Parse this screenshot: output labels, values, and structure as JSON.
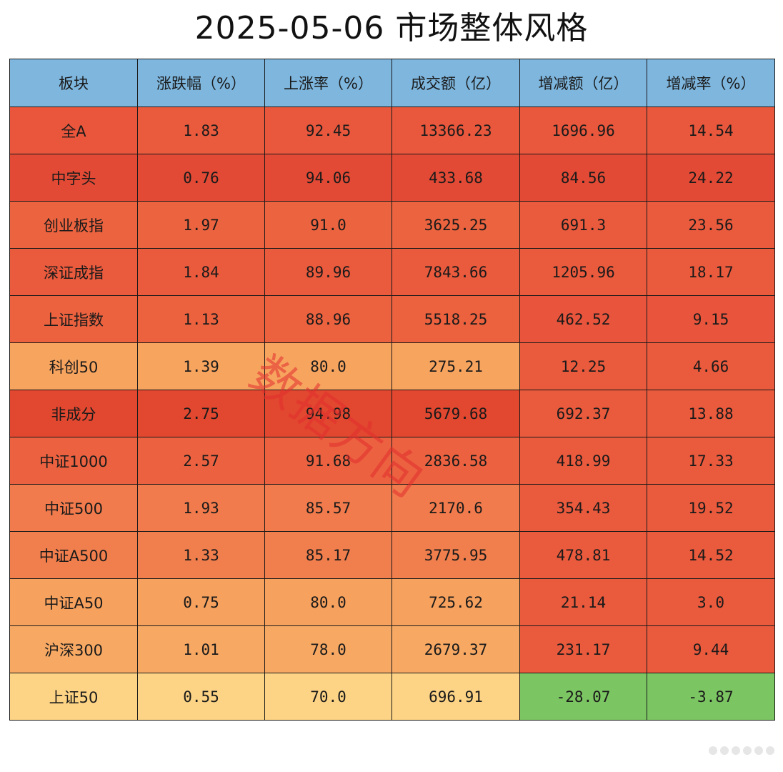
{
  "title": "2025-05-06  市场整体风格",
  "watermark": "数据方向",
  "table": {
    "headers": [
      "板块",
      "涨跌幅（%）",
      "上涨率（%）",
      "成交额（亿）",
      "增减额（亿）",
      "增减率（%）"
    ],
    "rows": [
      [
        "全A",
        "1.83",
        "92.45",
        "13366.23",
        "1696.96",
        "14.54"
      ],
      [
        "中字头",
        "0.76",
        "94.06",
        "433.68",
        "84.56",
        "24.22"
      ],
      [
        "创业板指",
        "1.97",
        "91.0",
        "3625.25",
        "691.3",
        "23.56"
      ],
      [
        "深证成指",
        "1.84",
        "89.96",
        "7843.66",
        "1205.96",
        "18.17"
      ],
      [
        "上证指数",
        "1.13",
        "88.96",
        "5518.25",
        "462.52",
        "9.15"
      ],
      [
        "科创50",
        "1.39",
        "80.0",
        "275.21",
        "12.25",
        "4.66"
      ],
      [
        "非成分",
        "2.75",
        "94.98",
        "5679.68",
        "692.37",
        "13.88"
      ],
      [
        "中证1000",
        "2.57",
        "91.68",
        "2836.58",
        "418.99",
        "17.33"
      ],
      [
        "中证500",
        "1.93",
        "85.57",
        "2170.6",
        "354.43",
        "19.52"
      ],
      [
        "中证A500",
        "1.33",
        "85.17",
        "3775.95",
        "478.81",
        "14.52"
      ],
      [
        "中证A50",
        "0.75",
        "80.0",
        "725.62",
        "21.14",
        "3.0"
      ],
      [
        "沪深300",
        "1.01",
        "78.0",
        "2679.37",
        "231.17",
        "9.44"
      ],
      [
        "上证50",
        "0.55",
        "70.0",
        "696.91",
        "-28.07",
        "-3.87"
      ]
    ],
    "cell_colors": [
      [
        "#e9563c",
        "#ea5b3e",
        "#e9583d",
        "#e9583d",
        "#e9583d",
        "#e9583d"
      ],
      [
        "#e24a35",
        "#e24a35",
        "#e24a35",
        "#e24a35",
        "#e24a35",
        "#e24a35"
      ],
      [
        "#ec633f",
        "#ec633f",
        "#ec633f",
        "#ec633f",
        "#ea5a3d",
        "#ea5a3d"
      ],
      [
        "#ea5a3d",
        "#ea5a3d",
        "#ea5a3d",
        "#ea5a3d",
        "#ea5a3d",
        "#ea5a3d"
      ],
      [
        "#ec623f",
        "#ec623f",
        "#ec623f",
        "#ec623f",
        "#e9553c",
        "#e9553c"
      ],
      [
        "#f7a45f",
        "#f7a45f",
        "#f7a45f",
        "#f7a45f",
        "#ea5a3d",
        "#ea5a3d"
      ],
      [
        "#e2472f",
        "#e2472f",
        "#e2472f",
        "#e2472f",
        "#ea5a3d",
        "#ea5a3d"
      ],
      [
        "#ec6240",
        "#ec6240",
        "#ec6240",
        "#ec6240",
        "#ea5a3d",
        "#ea5a3d"
      ],
      [
        "#f17b4c",
        "#f17b4c",
        "#f17b4c",
        "#f17b4c",
        "#ea5a3d",
        "#ea5a3d"
      ],
      [
        "#f17e4d",
        "#f17e4d",
        "#f17e4d",
        "#f17e4d",
        "#ea5a3d",
        "#ea5a3d"
      ],
      [
        "#f6a15e",
        "#f6a15e",
        "#f6a15e",
        "#f6a15e",
        "#ea5a3d",
        "#ea5a3d"
      ],
      [
        "#f7a964",
        "#f7a964",
        "#f7a964",
        "#f7a964",
        "#ea5a3d",
        "#ea5a3d"
      ],
      [
        "#fdd486",
        "#fdd486",
        "#fdd486",
        "#fdd486",
        "#7cc563",
        "#7cc563"
      ]
    ],
    "header_color": "#7eb6de"
  },
  "pagination_dots": 6
}
